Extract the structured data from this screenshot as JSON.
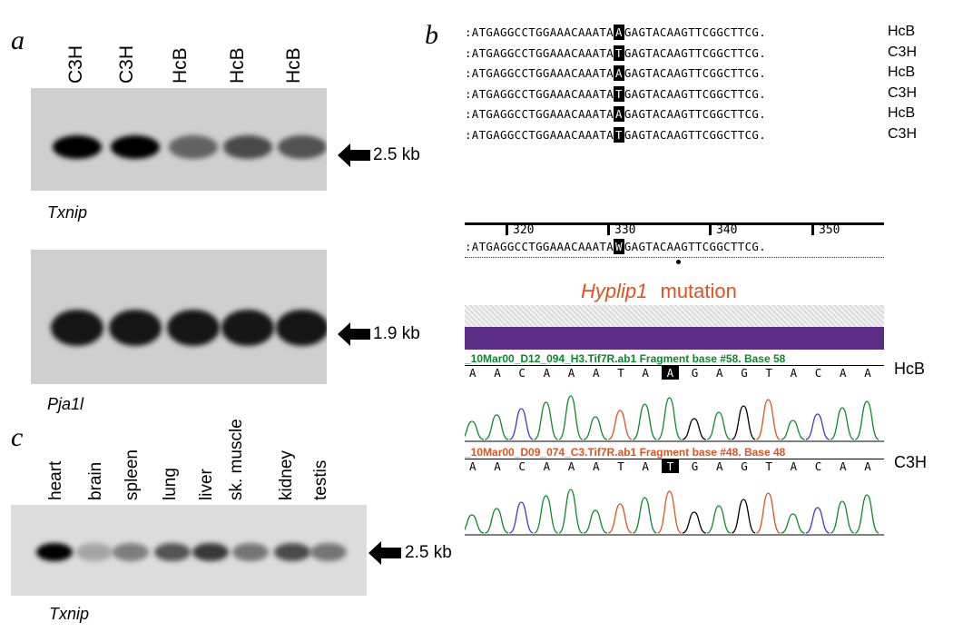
{
  "panels": {
    "a": {
      "letter": "a",
      "lanes": [
        "C3H",
        "C3H",
        "HcB",
        "HcB",
        "HcB"
      ],
      "blot1": {
        "gene": "Txnip",
        "size": "2.5 kb",
        "band_intensity": [
          1.0,
          1.0,
          0.45,
          0.6,
          0.55
        ]
      },
      "blot2": {
        "gene": "Pja1l",
        "size": "1.9 kb",
        "band_intensity": [
          0.9,
          0.9,
          0.9,
          0.9,
          0.9
        ]
      }
    },
    "b": {
      "letter": "b",
      "alignment": [
        {
          "pre": ":ATGAGGCCTGGAAACAAATA",
          "base": "A",
          "post": "GAGTACAAGTTCGGCTTCG.",
          "strain": "HcB"
        },
        {
          "pre": ":ATGAGGCCTGGAAACAAATA",
          "base": "T",
          "post": "GAGTACAAGTTCGGCTTCG.",
          "strain": "C3H"
        },
        {
          "pre": ":ATGAGGCCTGGAAACAAATA",
          "base": "A",
          "post": "GAGTACAAGTTCGGCTTCG.",
          "strain": "HcB"
        },
        {
          "pre": ":ATGAGGCCTGGAAACAAATA",
          "base": "T",
          "post": "GAGTACAAGTTCGGCTTCG.",
          "strain": "C3H"
        },
        {
          "pre": ":ATGAGGCCTGGAAACAAATA",
          "base": "A",
          "post": "GAGTACAAGTTCGGCTTCG.",
          "strain": "HcB"
        },
        {
          "pre": ":ATGAGGCCTGGAAACAAATA",
          "base": "T",
          "post": "GAGTACAAGTTCGGCTTCG.",
          "strain": "C3H"
        }
      ],
      "ruler": [
        "320",
        "330",
        "340",
        "350"
      ],
      "consensus": {
        "pre": ":ATGAGGCCTGGAAACAAATA",
        "base": "W",
        "post": "GAGTACAAGTTCGGCTTCG."
      },
      "mutation_gene": "Hyplip1",
      "mutation_word": "mutation",
      "traces": [
        {
          "title": "_10Mar00_D12_094_H3.Tif7R.ab1 Fragment base #58. Base 58",
          "bases": [
            "A",
            "A",
            "C",
            "A",
            "A",
            "A",
            "T",
            "A",
            "A",
            "G",
            "A",
            "G",
            "T",
            "A",
            "C",
            "A",
            "A"
          ],
          "highlight": 8,
          "strain": "HcB",
          "color": "#0a8a2a"
        },
        {
          "title": "_10Mar00_D09_074_C3.Tif7R.ab1 Fragment base #48. Base 48",
          "bases": [
            "A",
            "A",
            "C",
            "A",
            "A",
            "A",
            "T",
            "A",
            "T",
            "G",
            "A",
            "G",
            "T",
            "A",
            "C",
            "A",
            "A"
          ],
          "highlight": 8,
          "strain": "C3H",
          "color": "#e0531f"
        }
      ]
    },
    "c": {
      "letter": "c",
      "tissues": [
        "heart",
        "brain",
        "spleen",
        "lung",
        "liver",
        "sk. muscle",
        "kidney",
        "testis"
      ],
      "band_intensity": [
        1.0,
        0.05,
        0.3,
        0.55,
        0.7,
        0.35,
        0.6,
        0.35
      ],
      "gene": "Txnip",
      "size": "2.5 kb"
    }
  }
}
